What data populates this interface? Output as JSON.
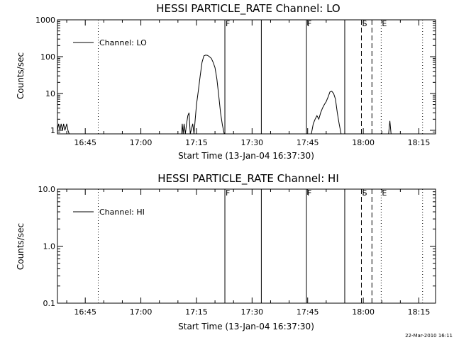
{
  "stamp": "22-Mar-2010 16:11",
  "chart_data": [
    {
      "type": "line",
      "title": "HESSI PARTICLE_RATE Channel: LO",
      "xlabel": "Start Time (13-Jan-04 16:37:30)",
      "ylabel": "Counts/sec",
      "yscale": "log",
      "ylim": [
        0.8,
        1000
      ],
      "xlim_minutes": [
        16.633,
        18.25
      ],
      "xticks": [
        "16:45",
        "17:00",
        "17:15",
        "17:30",
        "17:45",
        "18:00",
        "18:15"
      ],
      "yticks": [
        "1",
        "10",
        "100",
        "1000"
      ],
      "legend": "top-left",
      "series": [
        {
          "name": "Channel: LO",
          "points": [
            [
              "16:37:30",
              1
            ],
            [
              "16:37:50",
              1.5
            ],
            [
              "16:38:10",
              1
            ],
            [
              "16:38:30",
              1.5
            ],
            [
              "16:38:50",
              1
            ],
            [
              "16:39:10",
              1.5
            ],
            [
              "16:39:30",
              1
            ],
            [
              "16:40:00",
              1.5
            ],
            [
              "16:40:20",
              1
            ],
            [
              "16:40:40",
              0.8
            ],
            [
              "17:11:00",
              0.8
            ],
            [
              "17:11:10",
              1.5
            ],
            [
              "17:11:25",
              0.8
            ],
            [
              "17:11:40",
              1.5
            ],
            [
              "17:12:00",
              0.8
            ],
            [
              "17:12:20",
              1.5
            ],
            [
              "17:12:40",
              2.5
            ],
            [
              "17:13:00",
              3
            ],
            [
              "17:13:20",
              0.8
            ],
            [
              "17:14:00",
              1.5
            ],
            [
              "17:14:20",
              0.8
            ],
            [
              "17:14:40",
              2
            ],
            [
              "17:15:00",
              5
            ],
            [
              "17:15:30",
              12
            ],
            [
              "17:16:00",
              30
            ],
            [
              "17:16:30",
              70
            ],
            [
              "17:17:00",
              105
            ],
            [
              "17:17:30",
              110
            ],
            [
              "17:18:00",
              108
            ],
            [
              "17:18:30",
              100
            ],
            [
              "17:19:00",
              90
            ],
            [
              "17:19:30",
              70
            ],
            [
              "17:20:00",
              50
            ],
            [
              "17:20:30",
              25
            ],
            [
              "17:21:00",
              9
            ],
            [
              "17:21:30",
              3
            ],
            [
              "17:22:00",
              1.4
            ],
            [
              "17:22:30",
              0.8
            ],
            [
              "17:46:00",
              0.8
            ],
            [
              "17:46:30",
              1.5
            ],
            [
              "17:47:00",
              2
            ],
            [
              "17:47:30",
              2.5
            ],
            [
              "17:48:00",
              2
            ],
            [
              "17:48:30",
              3
            ],
            [
              "17:49:00",
              4
            ],
            [
              "17:49:30",
              5
            ],
            [
              "17:50:00",
              6
            ],
            [
              "17:50:30",
              8
            ],
            [
              "17:51:00",
              11
            ],
            [
              "17:51:30",
              11.5
            ],
            [
              "17:52:00",
              10
            ],
            [
              "17:52:30",
              7
            ],
            [
              "17:53:00",
              3
            ],
            [
              "17:53:30",
              1.5
            ],
            [
              "17:54:00",
              0.8
            ],
            [
              "18:06:50",
              0.8
            ],
            [
              "18:07:10",
              1.8
            ],
            [
              "18:07:30",
              0.8
            ]
          ]
        }
      ],
      "markers": [
        {
          "time": "16:48:30",
          "style": "dotted",
          "label": ""
        },
        {
          "time": "17:22:40",
          "style": "solid",
          "label": "F"
        },
        {
          "time": "17:32:30",
          "style": "solid",
          "label": ""
        },
        {
          "time": "17:44:40",
          "style": "solid",
          "label": "F"
        },
        {
          "time": "17:55:00",
          "style": "solid",
          "label": ""
        },
        {
          "time": "17:59:30",
          "style": "dashed",
          "label": "S"
        },
        {
          "time": "18:02:20",
          "style": "dashed",
          "label": ""
        },
        {
          "time": "18:04:50",
          "style": "dotted",
          "label": "E"
        },
        {
          "time": "18:16:00",
          "style": "dotted",
          "label": ""
        }
      ]
    },
    {
      "type": "line",
      "title": "HESSI PARTICLE_RATE Channel: HI",
      "xlabel": "Start Time (13-Jan-04 16:37:30)",
      "ylabel": "Counts/sec",
      "yscale": "log",
      "ylim": [
        0.1,
        10
      ],
      "xlim_minutes": [
        16.633,
        18.25
      ],
      "xticks": [
        "16:45",
        "17:00",
        "17:15",
        "17:30",
        "17:45",
        "18:00",
        "18:15"
      ],
      "yticks": [
        "0.1",
        "1.0",
        "10.0"
      ],
      "legend": "top-left",
      "series": [
        {
          "name": "Channel: HI",
          "points": []
        }
      ],
      "markers": [
        {
          "time": "16:48:30",
          "style": "dotted",
          "label": ""
        },
        {
          "time": "17:22:40",
          "style": "solid",
          "label": "F"
        },
        {
          "time": "17:32:30",
          "style": "solid",
          "label": ""
        },
        {
          "time": "17:44:40",
          "style": "solid",
          "label": "F"
        },
        {
          "time": "17:55:00",
          "style": "solid",
          "label": ""
        },
        {
          "time": "17:59:30",
          "style": "dashed",
          "label": "S"
        },
        {
          "time": "18:02:20",
          "style": "dashed",
          "label": ""
        },
        {
          "time": "18:04:50",
          "style": "dotted",
          "label": "E"
        },
        {
          "time": "18:16:00",
          "style": "dotted",
          "label": ""
        }
      ]
    }
  ]
}
